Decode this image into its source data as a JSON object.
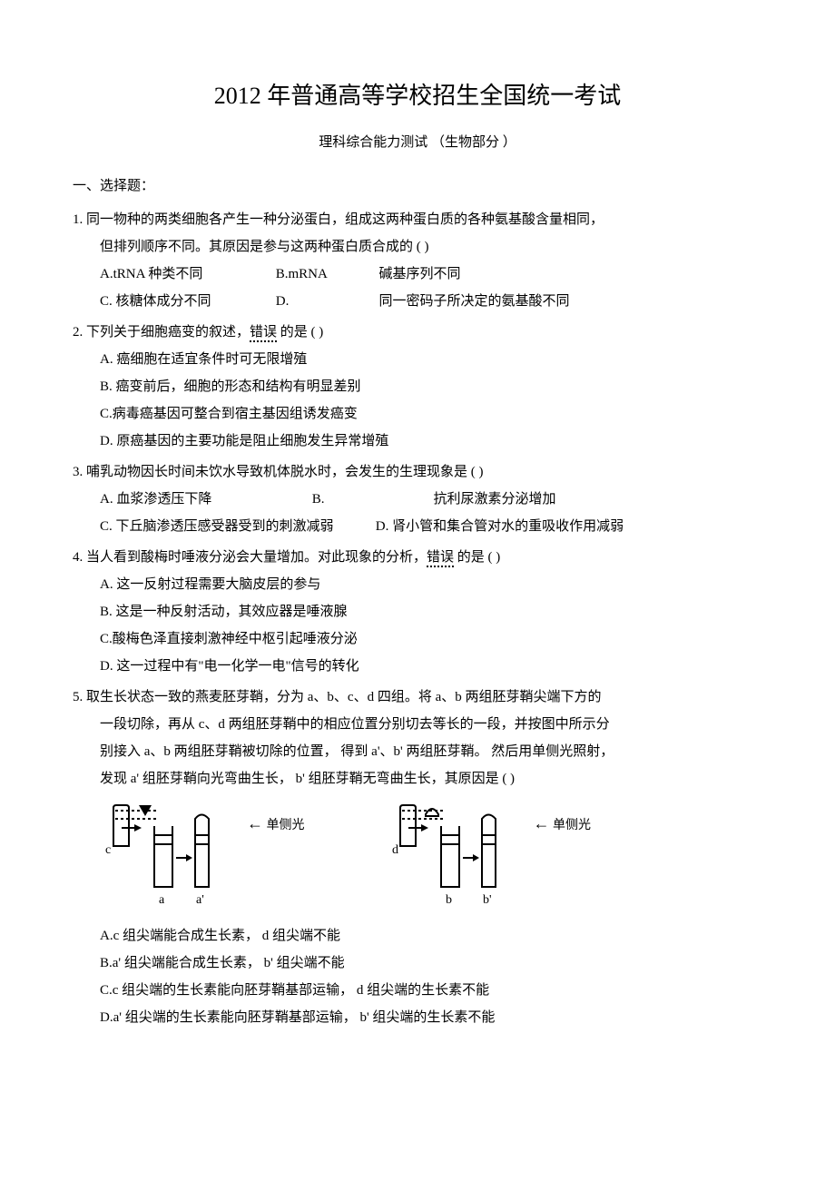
{
  "title": "2012 年普通高等学校招生全国统一考试",
  "subtitle": "理科综合能力测试  （生物部分 ）",
  "section_head": "一、选择题：",
  "q1": {
    "stem1": "1. 同一物种的两类细胞各产生一种分泌蛋白，组成这两种蛋白质的各种氨基酸含量相同，",
    "stem2": "但排列顺序不同。其原因是参与这两种蛋白质合成的      (   )",
    "a": "A.tRNA 种类不同",
    "b": "B.mRNA",
    "b2": "碱基序列不同",
    "c": "C. 核糖体成分不同",
    "d": "D.",
    "d2": "同一密码子所决定的氨基酸不同"
  },
  "q2": {
    "stem_pre": "2. 下列关于细胞癌变的叙述，",
    "err": "错误",
    "stem_post": "  的是 (   )",
    "a": "A. 癌细胞在适宜条件时可无限增殖",
    "b": "B. 癌变前后，细胞的形态和结构有明显差别",
    "c": "C.病毒癌基因可整合到宿主基因组诱发癌变",
    "d": "D. 原癌基因的主要功能是阻止细胞发生异常增殖"
  },
  "q3": {
    "stem": "3. 哺乳动物因长时间未饮水导致机体脱水时，会发生的生理现象是       (   )",
    "a": "A. 血浆渗透压下降",
    "b": "B.",
    "b2": "抗利尿激素分泌增加",
    "c": "C. 下丘脑渗透压感受器受到的刺激减弱",
    "d": "D.   肾小管和集合管对水的重吸收作用减弱"
  },
  "q4": {
    "stem_pre": "4. 当人看到酸梅时唾液分泌会大量增加。对此现象的分析，",
    "err": "错误",
    "stem_post": "    的是 (   )",
    "a": "A. 这一反射过程需要大脑皮层的参与",
    "b": "B. 这是一种反射活动，其效应器是唾液腺",
    "c": "C.酸梅色泽直接刺激神经中枢引起唾液分泌",
    "d": "D. 这一过程中有\"电一化学一电\"信号的转化"
  },
  "q5": {
    "stem1": "5. 取生长状态一致的燕麦胚芽鞘，分为      a、b、c、d 四组。将  a、b 两组胚芽鞘尖端下方的",
    "stem2": "一段切除，再从    c、d 两组胚芽鞘中的相应位置分别切去等长的一段，并按图中所示分",
    "stem3": "别接入 a、b 两组胚芽鞘被切除的位置，    得到 a'、b' 两组胚芽鞘。   然后用单侧光照射，",
    "stem4": "发现 a' 组胚芽鞘向光弯曲生长，     b' 组胚芽鞘无弯曲生长，其原因是     (   )",
    "a": "A.c  组尖端能合成生长素，     d 组尖端不能",
    "b": "B.a'  组尖端能合成生长素，     b' 组尖端不能",
    "c": "C.c 组尖端的生长素能向胚芽鞘基部运输，       d 组尖端的生长素不能",
    "d": "D.a'  组尖端的生长素能向胚芽鞘基部运输，       b'  组尖端的生长素不能"
  },
  "diagram": {
    "light_label": "单侧光",
    "left": {
      "c": "c",
      "a": "a",
      "a2": "a'"
    },
    "right": {
      "d": "d",
      "b": "b",
      "b2": "b'"
    },
    "stroke": "#000000",
    "stroke_width": 2,
    "dotted": "3,3",
    "width": 150,
    "height": 115
  }
}
